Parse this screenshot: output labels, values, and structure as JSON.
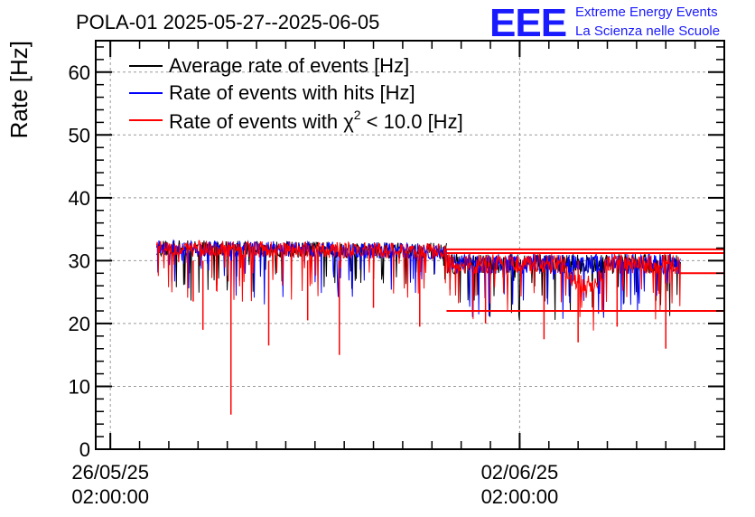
{
  "chart_data": {
    "type": "line",
    "title": "POLA-01 2025-05-27--2025-06-05",
    "ylabel": "Rate [Hz]",
    "xlabel": "",
    "ylim": [
      0,
      65
    ],
    "y_ticks": [
      0,
      10,
      20,
      30,
      40,
      50,
      60
    ],
    "y_tick_labels": [
      "0",
      "10",
      "20",
      "30",
      "40",
      "50",
      "60"
    ],
    "x_ticks": [
      {
        "date": "2025-05-26T02:00:00",
        "label_line1": "26/05/25",
        "label_line2": "02:00:00"
      },
      {
        "date": "2025-06-02T02:00:00",
        "label_line1": "02/06/25",
        "label_line2": "02:00:00"
      }
    ],
    "xlim": [
      "2025-05-25T20:00:00",
      "2025-06-05T14:00:00"
    ],
    "grid": true,
    "legend_position": "top-left",
    "logo": {
      "text": "EEE",
      "line1": "Extreme Energy Events",
      "line2": "La Scienza nelle Scuole"
    },
    "series": [
      {
        "name": "Average rate of events [Hz]",
        "color": "#000000",
        "segments": [
          {
            "x_start": "2025-05-26T21:00:00",
            "x_end": "2025-05-31T20:00:00",
            "baseline": 32.0,
            "noise": 1.3,
            "trend": -0.5
          },
          {
            "x_start": "2025-05-31T20:00:00",
            "x_end": "2025-06-04T20:00:00",
            "baseline": 29.5,
            "noise": 1.6,
            "trend": 0.0
          }
        ]
      },
      {
        "name": "Rate of events with hits [Hz]",
        "color": "#0000ff",
        "segments": [
          {
            "x_start": "2025-05-26T21:00:00",
            "x_end": "2025-05-31T20:00:00",
            "baseline": 32.0,
            "noise": 1.3,
            "trend": -0.5
          },
          {
            "x_start": "2025-05-31T20:00:00",
            "x_end": "2025-06-04T20:00:00",
            "baseline": 29.5,
            "noise": 1.6,
            "trend": 0.0
          }
        ]
      },
      {
        "name": "Rate of events with χ² < 10.0 [Hz]",
        "legend_main": "Rate of events with χ",
        "legend_sup": "2",
        "legend_tail": " < 10.0 [Hz]",
        "color": "#ff0000",
        "segments": [
          {
            "x_start": "2025-05-26T21:00:00",
            "x_end": "2025-05-31T20:00:00",
            "baseline": 32.0,
            "noise": 1.3,
            "trend": -0.5
          },
          {
            "x_start": "2025-05-31T20:00:00",
            "x_end": "2025-06-04T20:00:00",
            "baseline": 29.5,
            "noise": 1.6,
            "trend": 0.0
          }
        ],
        "dip": {
          "x_start": "2025-06-02T20:00:00",
          "x_end": "2025-06-03T14:00:00",
          "depth": 3.5
        },
        "spikes": [
          {
            "x": "2025-05-27T12:00:00",
            "y": 23.5
          },
          {
            "x": "2025-05-27T16:00:00",
            "y": 19.0
          },
          {
            "x": "2025-05-28T03:30:00",
            "y": 5.5
          },
          {
            "x": "2025-05-28T19:00:00",
            "y": 16.5
          },
          {
            "x": "2025-05-29T11:00:00",
            "y": 20.5
          },
          {
            "x": "2025-05-30T00:00:00",
            "y": 15.0
          },
          {
            "x": "2025-05-30T14:00:00",
            "y": 22.5
          },
          {
            "x": "2025-05-31T09:00:00",
            "y": 19.5
          },
          {
            "x": "2025-06-01T12:00:00",
            "y": 20.0
          },
          {
            "x": "2025-06-02T12:00:00",
            "y": 17.5
          },
          {
            "x": "2025-06-03T02:00:00",
            "y": 17.0
          },
          {
            "x": "2025-06-03T18:00:00",
            "y": 19.5
          },
          {
            "x": "2025-06-04T14:00:00",
            "y": 16.0
          }
        ],
        "flat_lines": [
          {
            "x_start": "2025-05-31T20:00:00",
            "x_end": "2025-06-05T14:00:00",
            "y": 31.8
          },
          {
            "x_start": "2025-05-31T20:00:00",
            "x_end": "2025-06-05T14:00:00",
            "y": 31.2
          },
          {
            "x_start": "2025-06-04T20:00:00",
            "x_end": "2025-06-05T14:00:00",
            "y": 28.0
          },
          {
            "x_start": "2025-05-31T20:00:00",
            "x_end": "2025-06-05T14:00:00",
            "y": 22.0
          }
        ]
      }
    ]
  }
}
